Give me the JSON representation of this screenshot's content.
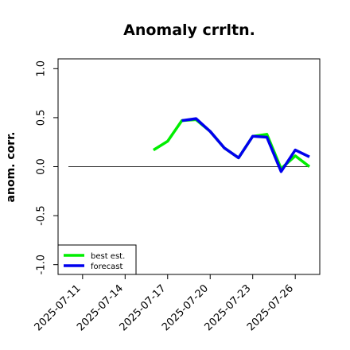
{
  "chart_data": {
    "type": "line",
    "title": "Anomaly crrltn.",
    "xlabel": "",
    "ylabel": "anom. corr.",
    "x": [
      "2025-07-10",
      "2025-07-11",
      "2025-07-12",
      "2025-07-13",
      "2025-07-14",
      "2025-07-15",
      "2025-07-16",
      "2025-07-17",
      "2025-07-18",
      "2025-07-19",
      "2025-07-20",
      "2025-07-21",
      "2025-07-22",
      "2025-07-23",
      "2025-07-24",
      "2025-07-25",
      "2025-07-26",
      "2025-07-27"
    ],
    "x_ticks": [
      "2025-07-11",
      "2025-07-14",
      "2025-07-17",
      "2025-07-20",
      "2025-07-23",
      "2025-07-26"
    ],
    "highlight_tick": "2025-07-17",
    "highlight_color": "#228B22",
    "y_ticks": [
      "-1.0",
      "-0.5",
      "0.0",
      "0.5",
      "1.0"
    ],
    "ylim": [
      -1.1,
      1.1
    ],
    "reference_line": 0,
    "series": [
      {
        "name": "best est.",
        "color": "#00ee00",
        "values": [
          null,
          null,
          null,
          null,
          null,
          null,
          0.17,
          0.26,
          0.47,
          0.48,
          0.36,
          0.19,
          0.09,
          0.31,
          0.33,
          -0.02,
          0.11,
          0.0
        ]
      },
      {
        "name": "forecast",
        "color": "#0000ee",
        "values": [
          null,
          null,
          null,
          null,
          null,
          null,
          null,
          null,
          0.47,
          0.49,
          0.36,
          0.19,
          0.09,
          0.31,
          0.3,
          -0.05,
          0.17,
          0.1
        ]
      }
    ],
    "legend_position": "bottom-left",
    "grid": false
  }
}
